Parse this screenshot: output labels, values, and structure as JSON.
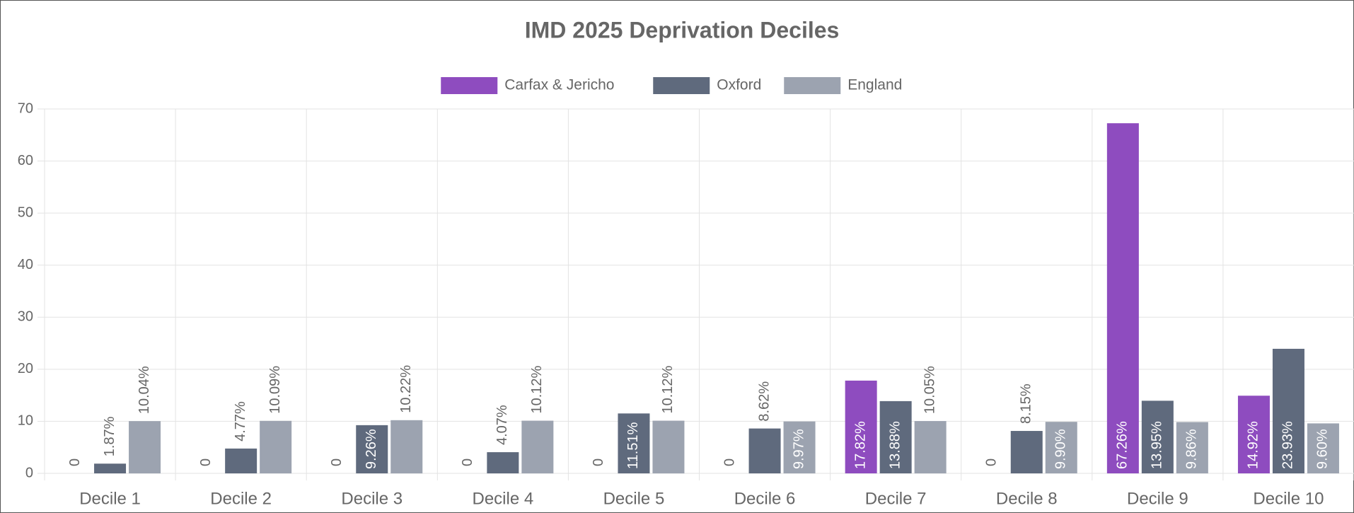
{
  "chart_data": {
    "type": "bar",
    "title": "IMD 2025 Deprivation Deciles",
    "categories": [
      "Decile 1",
      "Decile 2",
      "Decile 3",
      "Decile 4",
      "Decile 5",
      "Decile 6",
      "Decile 7",
      "Decile 8",
      "Decile 9",
      "Decile 10"
    ],
    "series": [
      {
        "name": "Carfax & Jericho",
        "color": "#8e4cbf",
        "values": [
          0,
          0,
          0,
          0,
          0,
          0,
          17.82,
          0,
          67.26,
          14.92
        ],
        "value_labels": [
          "0",
          "0",
          "0",
          "0",
          "0",
          "0",
          "17.82%",
          "0",
          "67.26%",
          "14.92%"
        ]
      },
      {
        "name": "Oxford",
        "color": "#5f6a7d",
        "values": [
          1.87,
          4.77,
          9.26,
          4.07,
          11.51,
          8.62,
          13.88,
          8.15,
          13.95,
          23.93
        ],
        "value_labels": [
          "1.87%",
          "4.77%",
          "9.26%",
          "4.07%",
          "11.51%",
          "8.62%",
          "13.88%",
          "8.15%",
          "13.95%",
          "23.93%"
        ]
      },
      {
        "name": "England",
        "color": "#9ca3b0",
        "values": [
          10.04,
          10.09,
          10.22,
          10.12,
          10.12,
          9.97,
          10.05,
          9.9,
          9.86,
          9.6
        ],
        "value_labels": [
          "10.04%",
          "10.09%",
          "10.22%",
          "10.12%",
          "10.12%",
          "9.97%",
          "10.05%",
          "9.90%",
          "9.86%",
          "9.60%"
        ]
      }
    ],
    "ylim": [
      0,
      70
    ],
    "yticks": [
      0,
      10,
      20,
      30,
      40,
      50,
      60,
      70
    ],
    "grid": true,
    "legend": "top"
  }
}
